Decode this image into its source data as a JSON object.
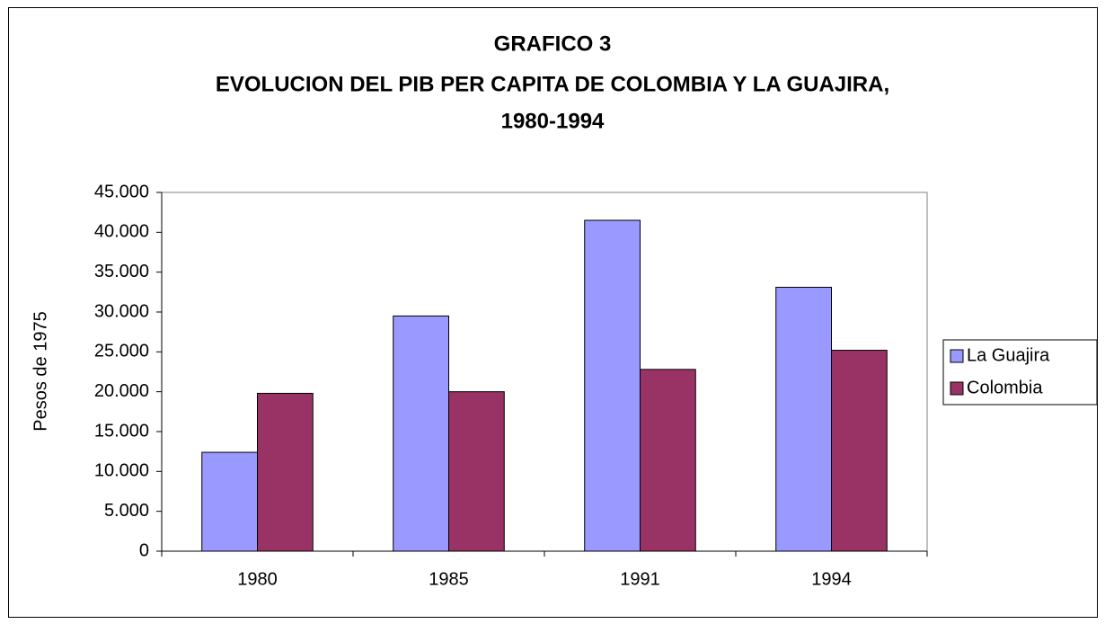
{
  "chart_data": {
    "type": "bar",
    "title": [
      "GRAFICO 3",
      "EVOLUCION DEL PIB PER CAPITA DE COLOMBIA Y LA GUAJIRA,",
      "1980-1994"
    ],
    "y_label": "Pesos de 1975",
    "categories": [
      "1980",
      "1985",
      "1991",
      "1994"
    ],
    "series": [
      {
        "name": "La Guajira",
        "color": "#9999ff",
        "values": [
          12400,
          29500,
          41500,
          33100
        ]
      },
      {
        "name": "Colombia",
        "color": "#993366",
        "values": [
          19800,
          20000,
          22800,
          25200
        ]
      }
    ],
    "ylim": [
      0,
      45000
    ],
    "yticks": [
      0,
      {
        "value": 5000,
        "label": "5.000"
      },
      {
        "value": 10000,
        "label": "10.000"
      },
      {
        "value": 15000,
        "label": "15.000"
      },
      {
        "value": 20000,
        "label": "20.000"
      },
      {
        "value": 25000,
        "label": "25.000"
      },
      {
        "value": 30000,
        "label": "30.000"
      },
      {
        "value": 35000,
        "label": "35.000"
      },
      {
        "value": 40000,
        "label": "40.000"
      },
      {
        "value": 45000,
        "label": "45.000"
      }
    ],
    "grid": false,
    "legend": "right"
  }
}
